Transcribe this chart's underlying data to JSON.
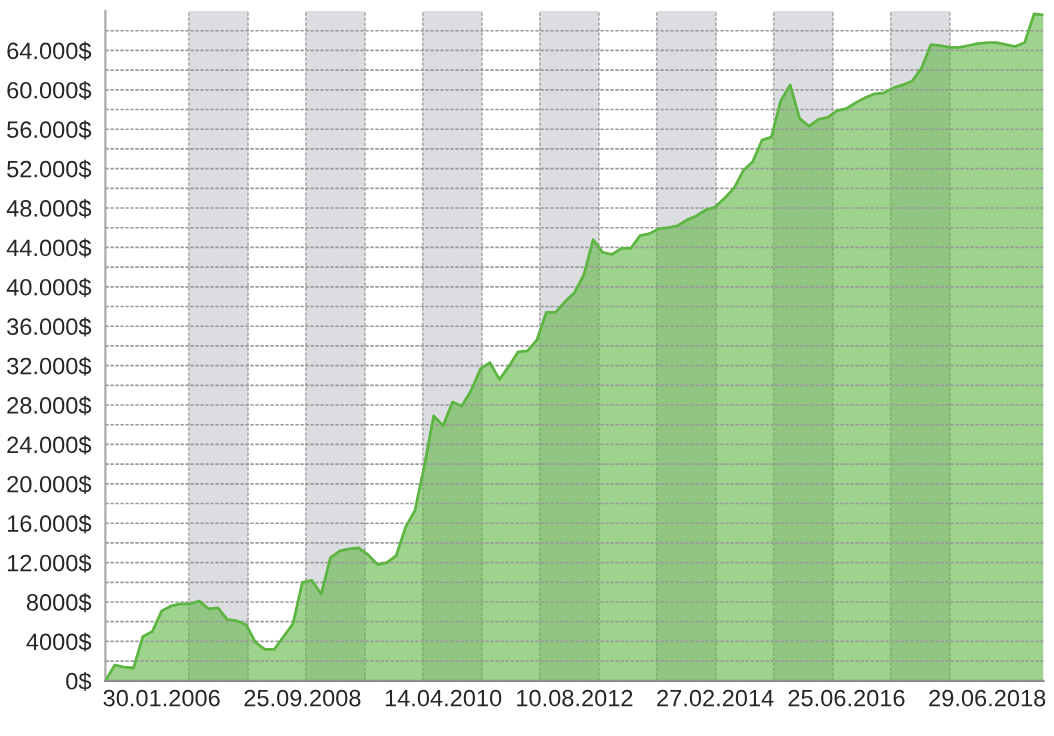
{
  "chart_data": {
    "type": "area",
    "categories": [
      null,
      null,
      null,
      null,
      null,
      null,
      "30.01.2006",
      null,
      null,
      null,
      null,
      null,
      null,
      null,
      null,
      null,
      null,
      null,
      null,
      null,
      null,
      "25.09.2008",
      null,
      null,
      null,
      null,
      null,
      null,
      null,
      null,
      null,
      null,
      null,
      null,
      null,
      null,
      "14.04.2010",
      null,
      null,
      null,
      null,
      null,
      null,
      null,
      null,
      null,
      null,
      null,
      null,
      null,
      "10.08.2012",
      null,
      null,
      null,
      null,
      null,
      null,
      null,
      null,
      null,
      null,
      null,
      null,
      null,
      null,
      "27.02.2014",
      null,
      null,
      null,
      null,
      null,
      null,
      null,
      null,
      null,
      null,
      null,
      null,
      null,
      "25.06.2016",
      null,
      null,
      null,
      null,
      null,
      null,
      null,
      null,
      null,
      null,
      null,
      null,
      null,
      null,
      "29.06.2018",
      null,
      null,
      null,
      null,
      null,
      null
    ],
    "series": [
      {
        "color": "#5db542",
        "values": [
          0,
          1600,
          1400,
          1300,
          4500,
          5000,
          7100,
          7600,
          7800,
          7800,
          8100,
          7300,
          7400,
          6200,
          6100,
          5700,
          3900,
          3200,
          3200,
          4500,
          5800,
          10000,
          10200,
          8800,
          12500,
          13200,
          13400,
          13500,
          12800,
          11800,
          12000,
          12700,
          15600,
          17300,
          21800,
          26900,
          25900,
          28300,
          27900,
          29500,
          31700,
          32300,
          30600,
          31900,
          33400,
          33500,
          34600,
          37400,
          37400,
          38500,
          39400,
          41200,
          44800,
          43500,
          43300,
          43900,
          43900,
          45200,
          45400,
          45900,
          46000,
          46200,
          46800,
          47200,
          47800,
          48100,
          49000,
          50000,
          51800,
          52700,
          54900,
          55200,
          58900,
          60500,
          57100,
          56300,
          57000,
          57200,
          57900,
          58100,
          58700,
          59200,
          59600,
          59700,
          60200,
          60500,
          60900,
          62200,
          64600,
          64500,
          64300,
          64300,
          64500,
          64700,
          64800,
          64800,
          64600,
          64400,
          64800,
          67700,
          67600
        ]
      }
    ],
    "ylim": [
      0,
      68000
    ],
    "yticks": [
      {
        "value": 0,
        "label": "0$"
      },
      {
        "value": 2000,
        "label": null
      },
      {
        "value": 4000,
        "label": "4000$"
      },
      {
        "value": 6000,
        "label": null
      },
      {
        "value": 8000,
        "label": "8000$"
      },
      {
        "value": 10000,
        "label": null
      },
      {
        "value": 12000,
        "label": "12.000$"
      },
      {
        "value": 14000,
        "label": null
      },
      {
        "value": 16000,
        "label": "16.000$"
      },
      {
        "value": 18000,
        "label": null
      },
      {
        "value": 20000,
        "label": "20.000$"
      },
      {
        "value": 22000,
        "label": null
      },
      {
        "value": 24000,
        "label": "24.000$"
      },
      {
        "value": 26000,
        "label": null
      },
      {
        "value": 28000,
        "label": "28.000$"
      },
      {
        "value": 30000,
        "label": null
      },
      {
        "value": 32000,
        "label": "32.000$"
      },
      {
        "value": 34000,
        "label": null
      },
      {
        "value": 36000,
        "label": "36.000$"
      },
      {
        "value": 38000,
        "label": null
      },
      {
        "value": 40000,
        "label": "40.000$"
      },
      {
        "value": 42000,
        "label": null
      },
      {
        "value": 44000,
        "label": "44.000$"
      },
      {
        "value": 46000,
        "label": null
      },
      {
        "value": 48000,
        "label": "48.000$"
      },
      {
        "value": 50000,
        "label": null
      },
      {
        "value": 52000,
        "label": "52.000$"
      },
      {
        "value": 54000,
        "label": null
      },
      {
        "value": 56000,
        "label": "56.000$"
      },
      {
        "value": 58000,
        "label": null
      },
      {
        "value": 60000,
        "label": "60.000$"
      },
      {
        "value": 62000,
        "label": null
      },
      {
        "value": 64000,
        "label": "64.000$"
      },
      {
        "value": 66000,
        "label": null
      }
    ],
    "grid": "y",
    "legend": false
  }
}
